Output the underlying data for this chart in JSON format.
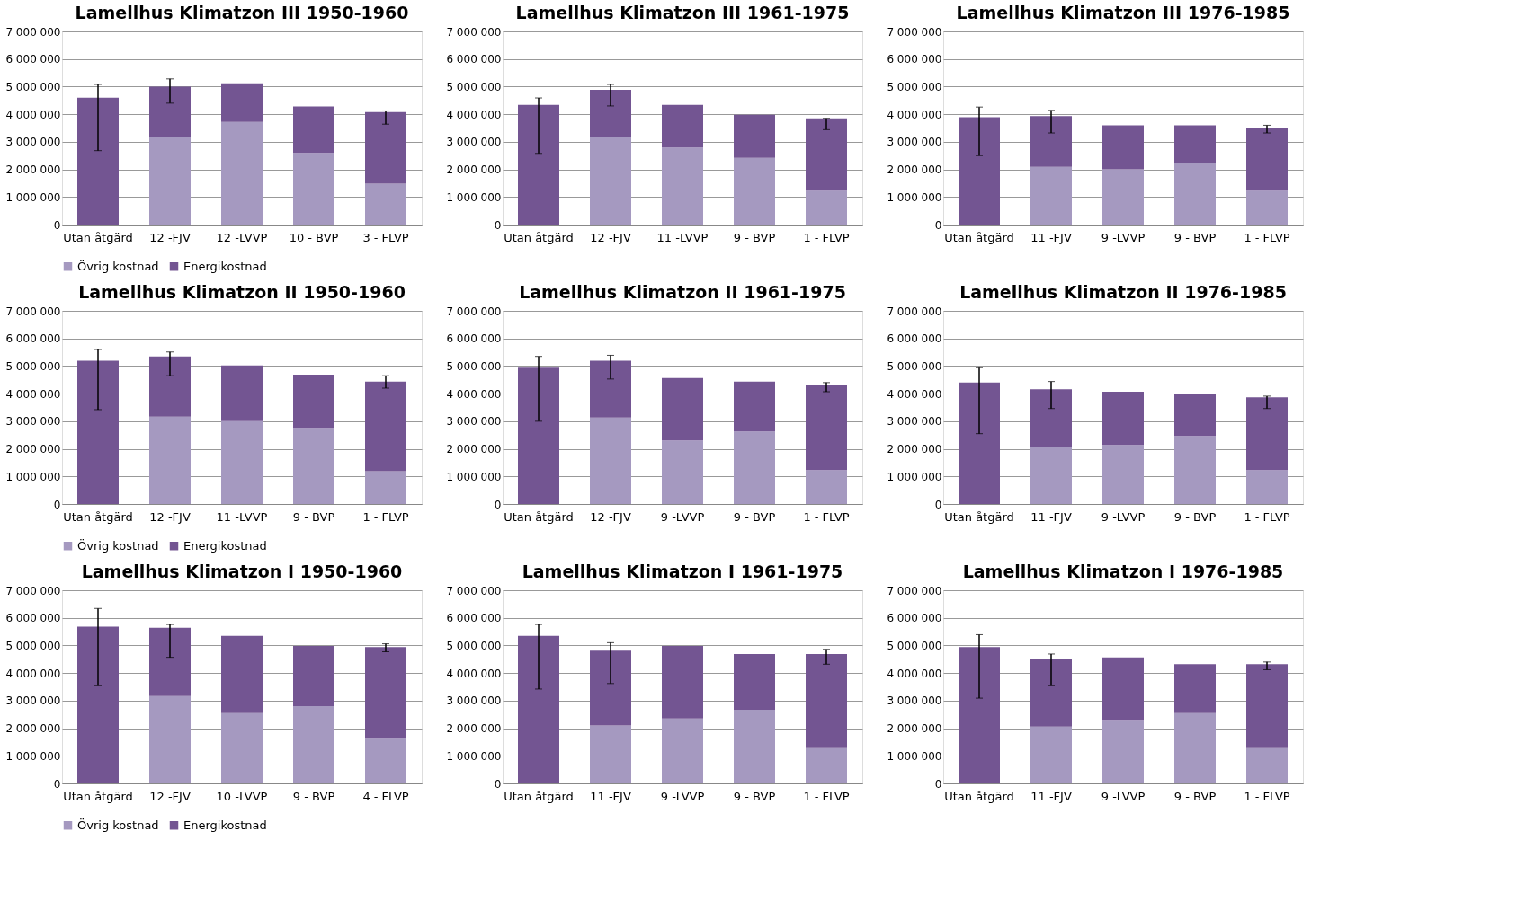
{
  "chart_data": [
    {
      "type": "bar",
      "title": "Lamellhus Klimatzon III 1950-1960",
      "categories": [
        "Utan åtgärd",
        "12 -FJV",
        "12 -LVVP",
        "10 - BVP",
        "3 - FLVP"
      ],
      "stacked": true,
      "legend": "bottom",
      "grid": "y",
      "ylim": [
        0,
        7000000
      ],
      "yticks": [
        0,
        {
          "value": 1000000,
          "label": "1 000 000"
        },
        {
          "value": 2000000,
          "label": "2 000 000"
        },
        {
          "value": 3000000,
          "label": "3 000 000"
        },
        {
          "value": 4000000,
          "label": "4 000 000"
        },
        {
          "value": 5000000,
          "label": "5 000 000"
        },
        {
          "value": 6000000,
          "label": "6 000 000"
        },
        {
          "value": 7000000,
          "label": "7 000 000"
        }
      ],
      "series": [
        {
          "name": "Övrig kostnad",
          "color": "#a599c0",
          "values": [
            0,
            3160000,
            3720000,
            2600000,
            1480000
          ]
        },
        {
          "name": "Energikostnad",
          "color": "#735592",
          "values": [
            4600000,
            1840000,
            1400000,
            1680000,
            2600000
          ],
          "errors": [
            [
              2680000,
              5080000
            ],
            [
              4400000,
              5280000
            ],
            null,
            null,
            [
              3640000,
              4120000
            ]
          ]
        }
      ]
    },
    {
      "type": "bar",
      "title": "Lamellhus Klimatzon III 1961-1975",
      "categories": [
        "Utan åtgärd",
        "12 -FJV",
        "11 -LVVP",
        "9 - BVP",
        "1 - FLVP"
      ],
      "stacked": true,
      "legend": "bottom",
      "grid": "y",
      "ylim": [
        0,
        7000000
      ],
      "yticks": [
        0,
        {
          "value": 1000000,
          "label": "1 000 000"
        },
        {
          "value": 2000000,
          "label": "2 000 000"
        },
        {
          "value": 3000000,
          "label": "3 000 000"
        },
        {
          "value": 4000000,
          "label": "4 000 000"
        },
        {
          "value": 5000000,
          "label": "5 000 000"
        },
        {
          "value": 6000000,
          "label": "6 000 000"
        },
        {
          "value": 7000000,
          "label": "7 000 000"
        }
      ],
      "series": [
        {
          "name": "Övrig kostnad",
          "color": "#a599c0",
          "values": [
            0,
            3160000,
            2790000,
            2420000,
            1230000
          ]
        },
        {
          "name": "Energikostnad",
          "color": "#735592",
          "values": [
            4340000,
            1720000,
            1550000,
            1560000,
            2620000
          ],
          "errors": [
            [
              2580000,
              4590000
            ],
            [
              4300000,
              5080000
            ],
            null,
            null,
            [
              3440000,
              3850000
            ]
          ]
        }
      ]
    },
    {
      "type": "bar",
      "title": "Lamellhus Klimatzon III 1976-1985",
      "categories": [
        "Utan åtgärd",
        "11 -FJV",
        "9 -LVVP",
        "9 - BVP",
        "1 - FLVP"
      ],
      "stacked": true,
      "legend": "bottom",
      "grid": "y",
      "ylim": [
        0,
        7000000
      ],
      "yticks": [
        0,
        {
          "value": 1000000,
          "label": "1 000 000"
        },
        {
          "value": 2000000,
          "label": "2 000 000"
        },
        {
          "value": 3000000,
          "label": "3 000 000"
        },
        {
          "value": 4000000,
          "label": "4 000 000"
        },
        {
          "value": 5000000,
          "label": "5 000 000"
        },
        {
          "value": 6000000,
          "label": "6 000 000"
        },
        {
          "value": 7000000,
          "label": "7 000 000"
        }
      ],
      "series": [
        {
          "name": "Övrig kostnad",
          "color": "#a599c0",
          "values": [
            0,
            2090000,
            2000000,
            2250000,
            1230000
          ]
        },
        {
          "name": "Energikostnad",
          "color": "#735592",
          "values": [
            3890000,
            1840000,
            1600000,
            1350000,
            2250000
          ],
          "errors": [
            [
              2500000,
              4260000
            ],
            [
              3320000,
              4140000
            ],
            null,
            null,
            [
              3320000,
              3600000
            ]
          ]
        }
      ]
    },
    {
      "type": "bar",
      "title": "Lamellhus Klimatzon II 1950-1960",
      "categories": [
        "Utan åtgärd",
        "12 -FJV",
        "11 -LVVP",
        "9 - BVP",
        "1 - FLVP"
      ],
      "stacked": true,
      "legend": "bottom",
      "grid": "y",
      "ylim": [
        0,
        7000000
      ],
      "yticks": [
        0,
        {
          "value": 1000000,
          "label": "1 000 000"
        },
        {
          "value": 2000000,
          "label": "2 000 000"
        },
        {
          "value": 3000000,
          "label": "3 000 000"
        },
        {
          "value": 4000000,
          "label": "4 000 000"
        },
        {
          "value": 5000000,
          "label": "5 000 000"
        },
        {
          "value": 6000000,
          "label": "6 000 000"
        },
        {
          "value": 7000000,
          "label": "7 000 000"
        }
      ],
      "series": [
        {
          "name": "Övrig kostnad",
          "color": "#a599c0",
          "values": [
            0,
            3170000,
            3000000,
            2760000,
            1190000
          ]
        },
        {
          "name": "Energikostnad",
          "color": "#735592",
          "values": [
            5190000,
            2180000,
            2020000,
            1930000,
            3250000
          ],
          "errors": [
            [
              3420000,
              5600000
            ],
            [
              4650000,
              5510000
            ],
            null,
            null,
            [
              4200000,
              4650000
            ]
          ]
        }
      ]
    },
    {
      "type": "bar",
      "title": "Lamellhus Klimatzon II 1961-1975",
      "categories": [
        "Utan åtgärd",
        "12 -FJV",
        "9 -LVVP",
        "9 - BVP",
        "1 - FLVP"
      ],
      "stacked": true,
      "legend": "bottom",
      "grid": "y",
      "ylim": [
        0,
        7000000
      ],
      "yticks": [
        0,
        {
          "value": 1000000,
          "label": "1 000 000"
        },
        {
          "value": 2000000,
          "label": "2 000 000"
        },
        {
          "value": 3000000,
          "label": "3 000 000"
        },
        {
          "value": 4000000,
          "label": "4 000 000"
        },
        {
          "value": 5000000,
          "label": "5 000 000"
        },
        {
          "value": 6000000,
          "label": "6 000 000"
        },
        {
          "value": 7000000,
          "label": "7 000 000"
        }
      ],
      "series": [
        {
          "name": "Övrig kostnad",
          "color": "#a599c0",
          "values": [
            0,
            3130000,
            2300000,
            2630000,
            1230000
          ]
        },
        {
          "name": "Energikostnad",
          "color": "#735592",
          "values": [
            4940000,
            2060000,
            2270000,
            1810000,
            3090000
          ],
          "errors": [
            [
              3000000,
              5350000
            ],
            [
              4530000,
              5390000
            ],
            null,
            null,
            [
              4070000,
              4400000
            ]
          ]
        }
      ]
    },
    {
      "type": "bar",
      "title": "Lamellhus Klimatzon II 1976-1985",
      "categories": [
        "Utan åtgärd",
        "11 -FJV",
        "9 -LVVP",
        "9 - BVP",
        "1 - FLVP"
      ],
      "stacked": true,
      "legend": "bottom",
      "grid": "y",
      "ylim": [
        0,
        7000000
      ],
      "yticks": [
        0,
        {
          "value": 1000000,
          "label": "1 000 000"
        },
        {
          "value": 2000000,
          "label": "2 000 000"
        },
        {
          "value": 3000000,
          "label": "3 000 000"
        },
        {
          "value": 4000000,
          "label": "4 000 000"
        },
        {
          "value": 5000000,
          "label": "5 000 000"
        },
        {
          "value": 6000000,
          "label": "6 000 000"
        },
        {
          "value": 7000000,
          "label": "7 000 000"
        }
      ],
      "series": [
        {
          "name": "Övrig kostnad",
          "color": "#a599c0",
          "values": [
            0,
            2060000,
            2140000,
            2470000,
            1230000
          ]
        },
        {
          "name": "Energikostnad",
          "color": "#735592",
          "values": [
            4400000,
            2100000,
            1930000,
            1520000,
            2640000
          ],
          "errors": [
            [
              2550000,
              4940000
            ],
            [
              3460000,
              4440000
            ],
            null,
            null,
            [
              3460000,
              3910000
            ]
          ]
        }
      ]
    },
    {
      "type": "bar",
      "title": "Lamellhus Klimatzon I 1950-1960",
      "categories": [
        "Utan åtgärd",
        "12 -FJV",
        "10 -LVVP",
        "9 - BVP",
        "4 - FLVP"
      ],
      "stacked": true,
      "legend": "bottom",
      "grid": "y",
      "ylim": [
        0,
        7000000
      ],
      "yticks": [
        0,
        {
          "value": 1000000,
          "label": "1 000 000"
        },
        {
          "value": 2000000,
          "label": "2 000 000"
        },
        {
          "value": 3000000,
          "label": "3 000 000"
        },
        {
          "value": 4000000,
          "label": "4 000 000"
        },
        {
          "value": 5000000,
          "label": "5 000 000"
        },
        {
          "value": 6000000,
          "label": "6 000 000"
        },
        {
          "value": 7000000,
          "label": "7 000 000"
        }
      ],
      "series": [
        {
          "name": "Övrig kostnad",
          "color": "#a599c0",
          "values": [
            0,
            3170000,
            2550000,
            2800000,
            1650000
          ]
        },
        {
          "name": "Energikostnad",
          "color": "#735592",
          "values": [
            5680000,
            2470000,
            2800000,
            2180000,
            3290000
          ],
          "errors": [
            [
              3540000,
              6340000
            ],
            [
              4570000,
              5760000
            ],
            null,
            null,
            [
              4770000,
              5060000
            ]
          ]
        }
      ]
    },
    {
      "type": "bar",
      "title": "Lamellhus Klimatzon I 1961-1975",
      "categories": [
        "Utan åtgärd",
        "11 -FJV",
        "9 -LVVP",
        "9 - BVP",
        "1 - FLVP"
      ],
      "stacked": true,
      "legend": "bottom",
      "grid": "y",
      "ylim": [
        0,
        7000000
      ],
      "yticks": [
        0,
        {
          "value": 1000000,
          "label": "1 000 000"
        },
        {
          "value": 2000000,
          "label": "2 000 000"
        },
        {
          "value": 3000000,
          "label": "3 000 000"
        },
        {
          "value": 4000000,
          "label": "4 000 000"
        },
        {
          "value": 5000000,
          "label": "5 000 000"
        },
        {
          "value": 6000000,
          "label": "6 000 000"
        },
        {
          "value": 7000000,
          "label": "7 000 000"
        }
      ],
      "series": [
        {
          "name": "Övrig kostnad",
          "color": "#a599c0",
          "values": [
            0,
            2100000,
            2350000,
            2670000,
            1280000
          ]
        },
        {
          "name": "Energikostnad",
          "color": "#735592",
          "values": [
            5350000,
            2710000,
            2630000,
            2020000,
            3410000
          ],
          "errors": [
            [
              3420000,
              5760000
            ],
            [
              3620000,
              5100000
            ],
            null,
            null,
            [
              4320000,
              4860000
            ]
          ]
        }
      ]
    },
    {
      "type": "bar",
      "title": "Lamellhus Klimatzon I 1976-1985",
      "categories": [
        "Utan åtgärd",
        "11 -FJV",
        "9 -LVVP",
        "9 - BVP",
        "1 - FLVP"
      ],
      "stacked": true,
      "legend": "bottom",
      "grid": "y",
      "ylim": [
        0,
        7000000
      ],
      "yticks": [
        0,
        {
          "value": 1000000,
          "label": "1 000 000"
        },
        {
          "value": 2000000,
          "label": "2 000 000"
        },
        {
          "value": 3000000,
          "label": "3 000 000"
        },
        {
          "value": 4000000,
          "label": "4 000 000"
        },
        {
          "value": 5000000,
          "label": "5 000 000"
        },
        {
          "value": 6000000,
          "label": "6 000 000"
        },
        {
          "value": 7000000,
          "label": "7 000 000"
        }
      ],
      "series": [
        {
          "name": "Övrig kostnad",
          "color": "#a599c0",
          "values": [
            0,
            2060000,
            2300000,
            2550000,
            1280000
          ]
        },
        {
          "name": "Energikostnad",
          "color": "#735592",
          "values": [
            4940000,
            2430000,
            2270000,
            1770000,
            3040000
          ],
          "errors": [
            [
              3090000,
              5390000
            ],
            [
              3540000,
              4690000
            ],
            null,
            null,
            [
              4120000,
              4400000
            ]
          ]
        }
      ]
    }
  ]
}
